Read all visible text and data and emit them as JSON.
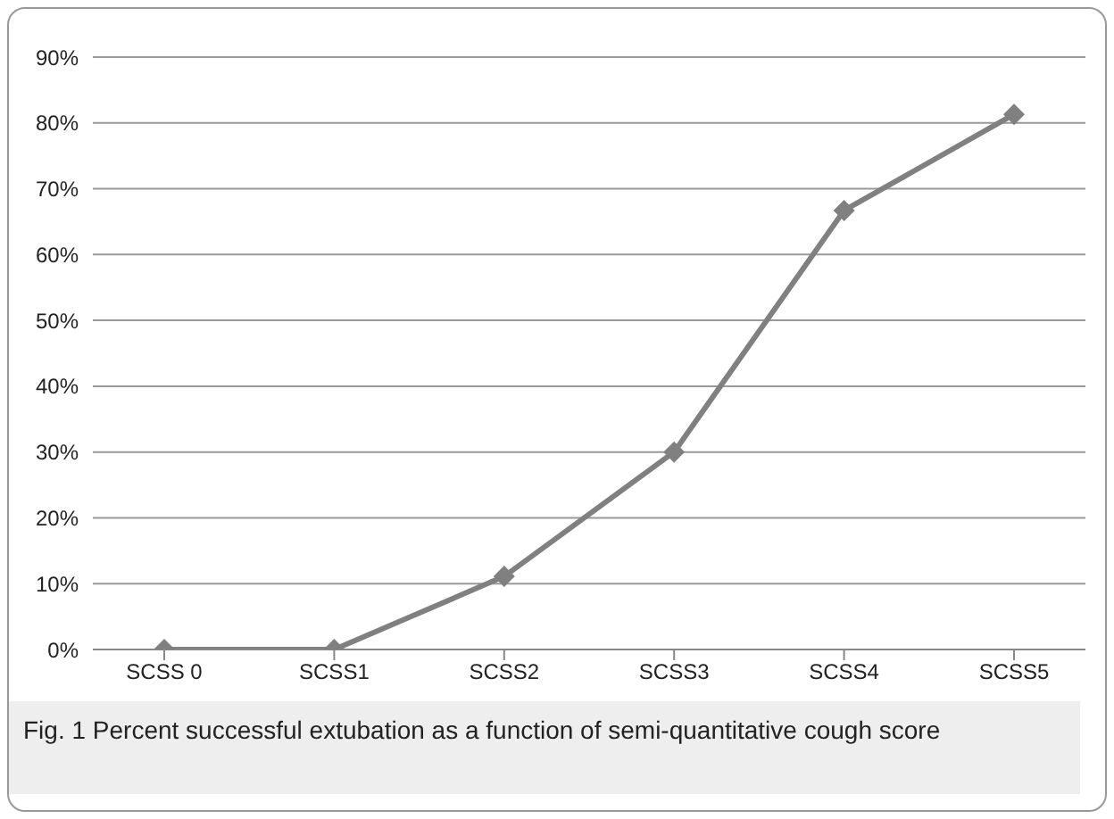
{
  "chart_data": {
    "type": "line",
    "categories": [
      "SCSS 0",
      "SCSS1",
      "SCSS2",
      "SCSS3",
      "SCSS4",
      "SCSS5"
    ],
    "series": [
      {
        "color": "#808080",
        "values": [
          0,
          0,
          11.1,
          30,
          66.7,
          81.3
        ]
      }
    ],
    "ylim": [
      0,
      90
    ],
    "yticks": [
      {
        "value": 0,
        "label": "0%"
      },
      {
        "value": 10,
        "label": "10%"
      },
      {
        "value": 20,
        "label": "20%"
      },
      {
        "value": 30,
        "label": "30%"
      },
      {
        "value": 40,
        "label": "40%"
      },
      {
        "value": 50,
        "label": "50%"
      },
      {
        "value": 60,
        "label": "60%"
      },
      {
        "value": 70,
        "label": "70%"
      },
      {
        "value": 80,
        "label": "80%"
      },
      {
        "value": 90,
        "label": "90%"
      }
    ],
    "grid": "y",
    "marker": "diamond",
    "line_style": "solid",
    "legend": false,
    "annotations": [
      "Fig. 1  Percent successful extubation as a function of semi-quantitative cough score"
    ]
  }
}
